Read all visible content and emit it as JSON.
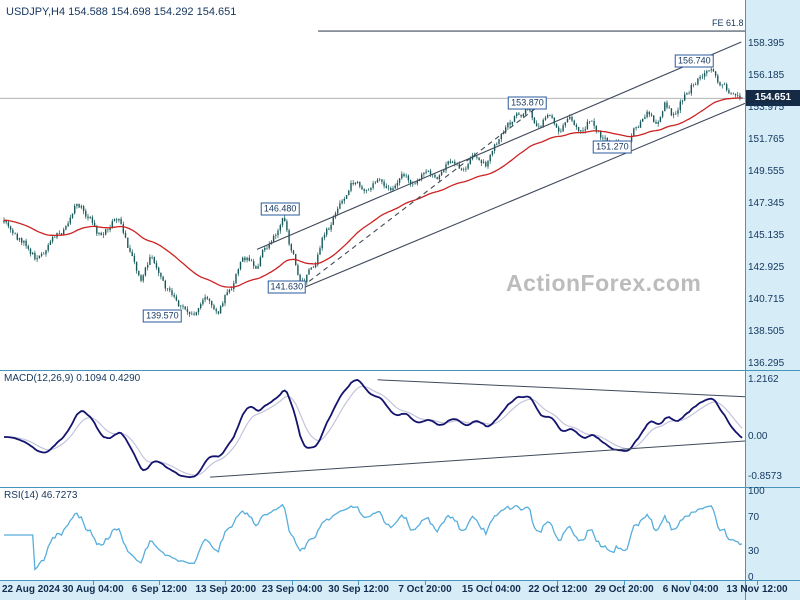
{
  "header": {
    "title": "USDJPY,H4 154.588 154.698 154.292 154.651"
  },
  "watermark": "ActionForex.com",
  "panels": {
    "macd": {
      "label": "MACD(12,26,9) 0.1094 0.4290"
    },
    "rsi": {
      "label": "RSI(14) 46.7273"
    }
  },
  "colors": {
    "candle": "#175858",
    "ma": "#cc2222",
    "macd": "#14146e",
    "macd_signal": "#c4c4dc",
    "rsi": "#57aedd",
    "trendline": "#3f4a5a",
    "axis_bg": "#d6edf8",
    "separator": "#4695bd",
    "label_text": "#14365e",
    "price_tag_bg": "#152a45",
    "watermark": "#bcbcbc"
  },
  "chart_data": [
    {
      "type": "candlestick",
      "title": "USDJPY,H4",
      "ohlc": {
        "open": "154.588",
        "high": "154.698",
        "low": "154.292",
        "close": "154.651"
      },
      "last_price": "154.651",
      "y_range": [
        136.0,
        160.9
      ],
      "y_ticks": [
        "158.395",
        "156.185",
        "153.975",
        "151.765",
        "149.555",
        "147.345",
        "145.135",
        "142.925",
        "140.715",
        "138.505",
        "136.295"
      ],
      "x_labels": [
        "22 Aug 2024",
        "30 Aug 04:00",
        "6 Sep 12:00",
        "13 Sep 20:00",
        "23 Sep 04:00",
        "30 Sep 12:00",
        "7 Oct 20:00",
        "15 Oct 04:00",
        "22 Oct 12:00",
        "29 Oct 20:00",
        "6 Nov 04:00",
        "13 Nov 12:00"
      ],
      "swing_labels": [
        {
          "text": "156.740",
          "f": 0.932,
          "price": 156.74,
          "side": "above"
        },
        {
          "text": "153.870",
          "f": 0.708,
          "price": 153.87,
          "side": "above"
        },
        {
          "text": "151.270",
          "f": 0.822,
          "price": 151.27,
          "side": "at"
        },
        {
          "text": "146.480",
          "f": 0.376,
          "price": 146.48,
          "side": "above"
        },
        {
          "text": "141.630",
          "f": 0.385,
          "price": 141.63,
          "side": "at"
        },
        {
          "text": "139.570",
          "f": 0.218,
          "price": 139.57,
          "side": "at"
        }
      ],
      "fibonacci_extension": {
        "label": "FE 61.8",
        "price": 159.3,
        "from_f": 0.427
      },
      "trendlines": [
        {
          "x1": 0.345,
          "p1": 144.2,
          "x2": 0.995,
          "p2": 158.55,
          "style": "solid"
        },
        {
          "x1": 0.405,
          "p1": 141.5,
          "x2": 1.0,
          "p2": 154.3,
          "style": "solid"
        },
        {
          "x1": 0.415,
          "p1": 142.0,
          "x2": 0.73,
          "p2": 154.4,
          "style": "dashed"
        }
      ],
      "moving_average": {
        "kind": "EMA",
        "period": 48
      },
      "candles_approx_close_path": [
        [
          0,
          146.2
        ],
        [
          0.02,
          144.9
        ],
        [
          0.045,
          143.6
        ],
        [
          0.075,
          145.3
        ],
        [
          0.1,
          147.2
        ],
        [
          0.115,
          146.5
        ],
        [
          0.13,
          145.2
        ],
        [
          0.155,
          146.3
        ],
        [
          0.172,
          144.0
        ],
        [
          0.185,
          142.2
        ],
        [
          0.2,
          143.6
        ],
        [
          0.22,
          141.6
        ],
        [
          0.24,
          140.3
        ],
        [
          0.258,
          139.7
        ],
        [
          0.272,
          140.9
        ],
        [
          0.288,
          139.8
        ],
        [
          0.305,
          141.4
        ],
        [
          0.325,
          143.6
        ],
        [
          0.342,
          143.0
        ],
        [
          0.355,
          144.4
        ],
        [
          0.368,
          145.2
        ],
        [
          0.378,
          146.4
        ],
        [
          0.39,
          144.2
        ],
        [
          0.402,
          141.8
        ],
        [
          0.418,
          143.0
        ],
        [
          0.438,
          145.6
        ],
        [
          0.458,
          147.6
        ],
        [
          0.475,
          148.9
        ],
        [
          0.49,
          148.2
        ],
        [
          0.508,
          149.1
        ],
        [
          0.522,
          148.4
        ],
        [
          0.54,
          149.3
        ],
        [
          0.557,
          148.7
        ],
        [
          0.572,
          149.7
        ],
        [
          0.588,
          149.2
        ],
        [
          0.607,
          150.4
        ],
        [
          0.622,
          149.7
        ],
        [
          0.638,
          150.7
        ],
        [
          0.652,
          150.1
        ],
        [
          0.668,
          151.6
        ],
        [
          0.683,
          152.9
        ],
        [
          0.698,
          153.5
        ],
        [
          0.71,
          153.8
        ],
        [
          0.724,
          152.7
        ],
        [
          0.738,
          153.4
        ],
        [
          0.752,
          152.4
        ],
        [
          0.766,
          153.3
        ],
        [
          0.78,
          152.3
        ],
        [
          0.795,
          153.0
        ],
        [
          0.81,
          152.0
        ],
        [
          0.825,
          151.5
        ],
        [
          0.842,
          151.3
        ],
        [
          0.858,
          152.7
        ],
        [
          0.872,
          153.6
        ],
        [
          0.884,
          152.9
        ],
        [
          0.896,
          154.2
        ],
        [
          0.908,
          153.4
        ],
        [
          0.922,
          154.8
        ],
        [
          0.936,
          155.7
        ],
        [
          0.95,
          156.4
        ],
        [
          0.958,
          156.7
        ],
        [
          0.97,
          155.7
        ],
        [
          0.985,
          155.1
        ],
        [
          1,
          154.65
        ]
      ]
    },
    {
      "type": "line",
      "title": "MACD(12,26,9)",
      "params": [
        12,
        26,
        9
      ],
      "current_values": [
        "0.1094",
        "0.4290"
      ],
      "y_ticks": [
        "1.2162",
        "0.00",
        "-0.8573"
      ],
      "trendlines": [
        {
          "x1": 0.507,
          "v1": 1.22,
          "x2": 1.0,
          "v2": 0.86
        },
        {
          "x1": 0.282,
          "v1": -0.855,
          "x2": 1.0,
          "v2": -0.085
        }
      ]
    },
    {
      "type": "line",
      "title": "RSI(14)",
      "period": 14,
      "current_value": "46.7273",
      "y_ticks": [
        "100",
        "70",
        "30",
        "0"
      ]
    }
  ]
}
